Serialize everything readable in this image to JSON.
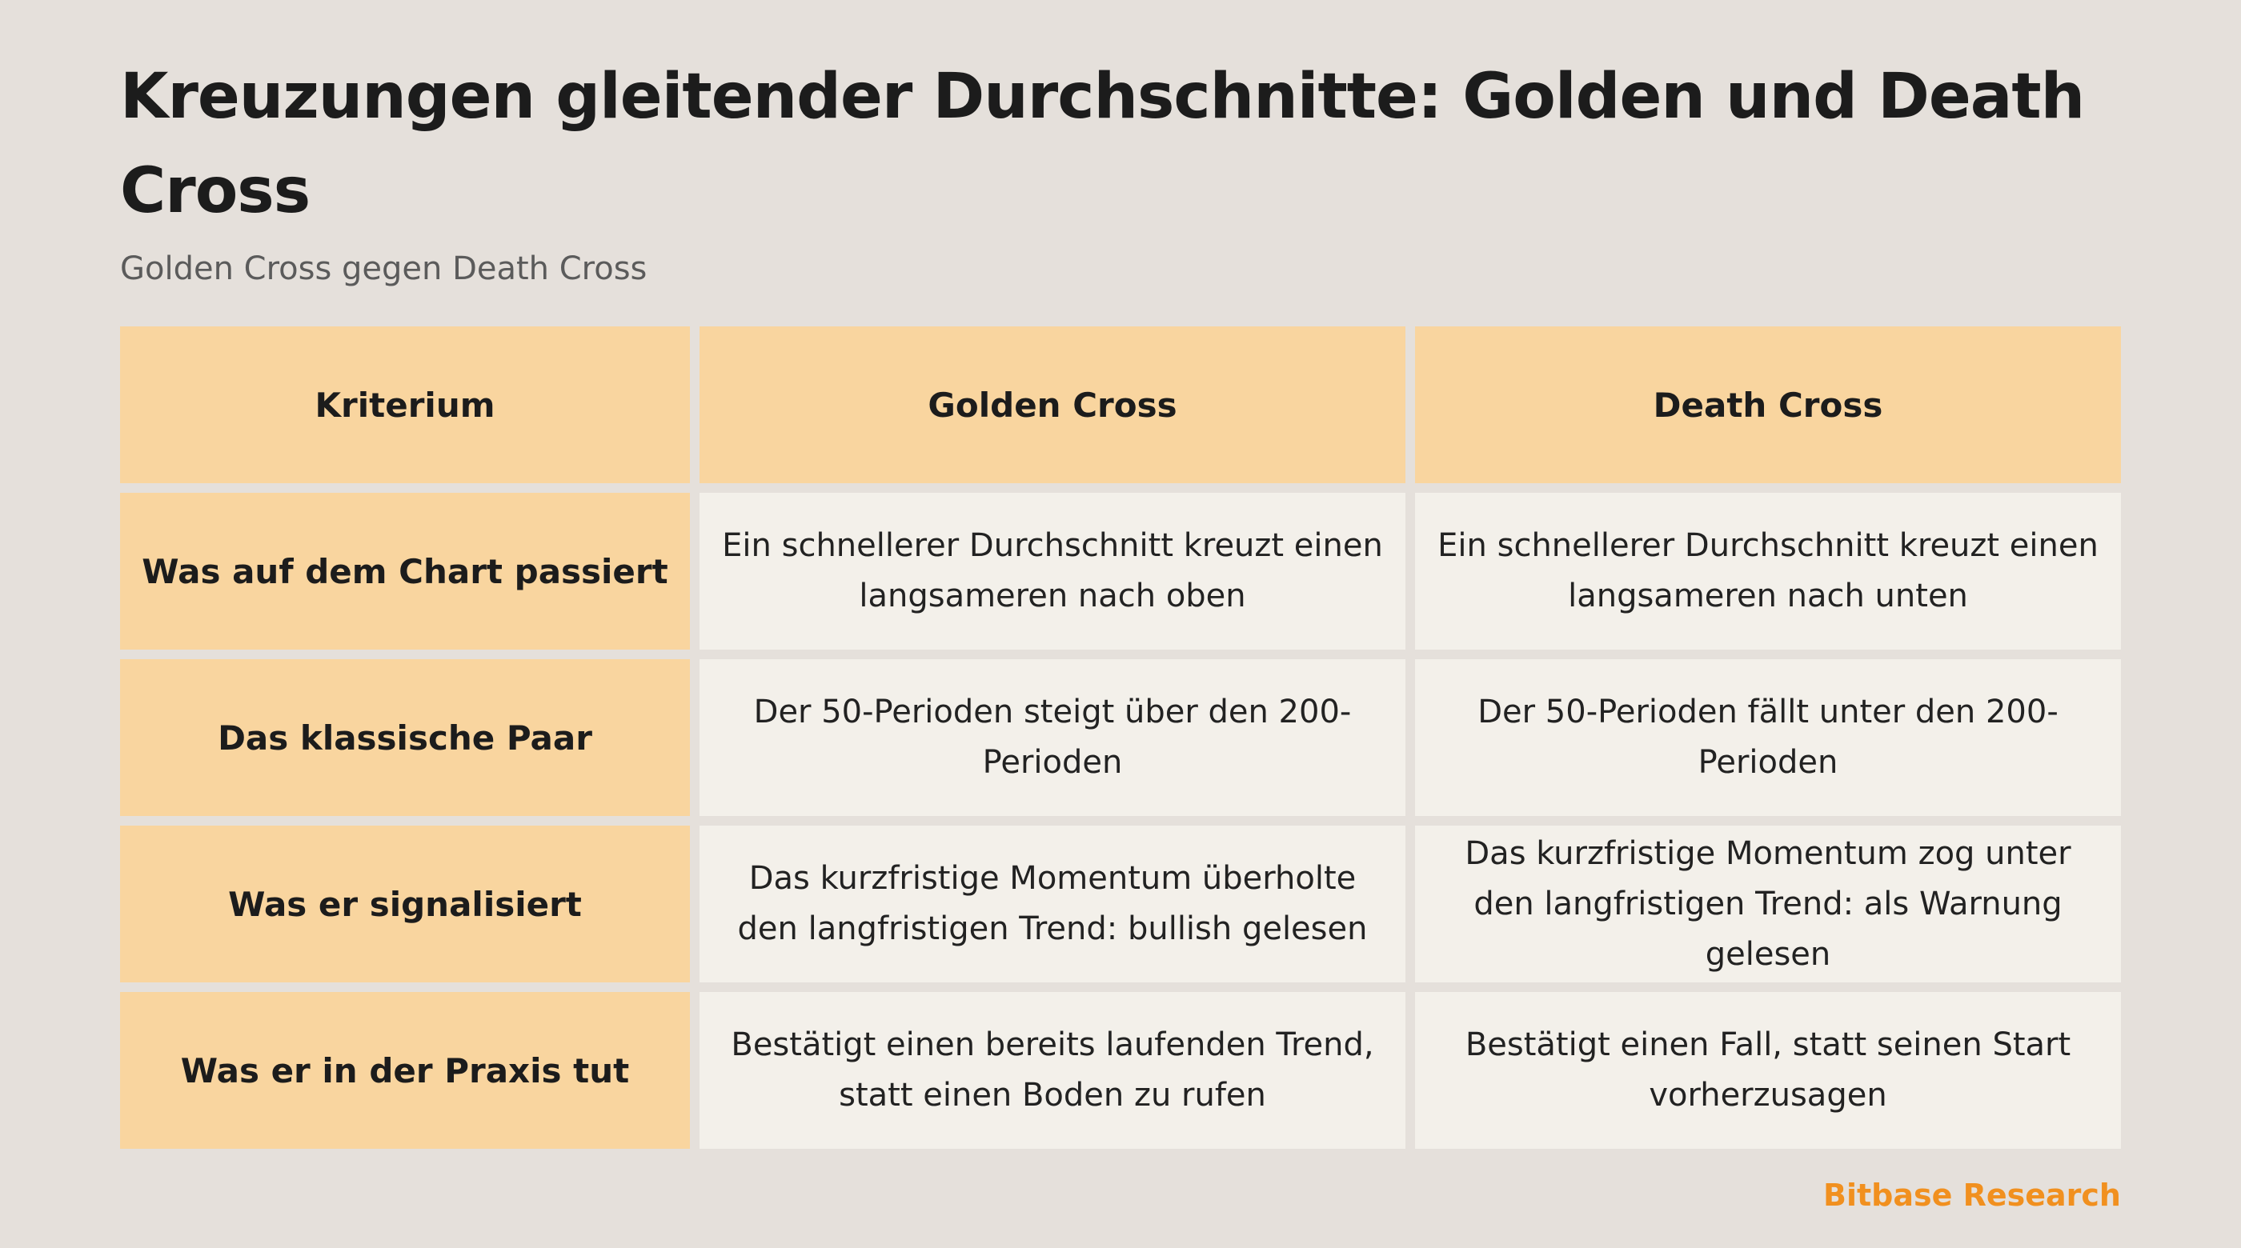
{
  "title": "Kreuzungen gleitender Durchschnitte: Golden und Death Cross",
  "subtitle": "Golden Cross gegen Death Cross",
  "table": {
    "headers": [
      "Kriterium",
      "Golden Cross",
      "Death Cross"
    ],
    "rows": [
      {
        "criterion": "Was auf dem Chart passiert",
        "golden": "Ein schnellerer Durchschnitt kreuzt einen langsameren nach oben",
        "death": "Ein schnellerer Durchschnitt kreuzt einen langsameren nach unten"
      },
      {
        "criterion": "Das klassische Paar",
        "golden": "Der 50-Perioden steigt über den 200-Perioden",
        "death": "Der 50-Perioden fällt unter den 200-Perioden"
      },
      {
        "criterion": "Was er signalisiert",
        "golden": "Das kurzfristige Momentum überholte den langfristigen Trend: bullish gelesen",
        "death": "Das kurzfristige Momentum zog unter den langfristigen Trend: als Warnung gelesen"
      },
      {
        "criterion": "Was er in der Praxis tut",
        "golden": "Bestätigt einen bereits laufenden Trend, statt einen Boden zu rufen",
        "death": "Bestätigt einen Fall, statt seinen Start vorherzusagen"
      }
    ]
  },
  "brand": "Bitbase Research",
  "colors": {
    "background": "#e5e0db",
    "header_fill": "#f9d59f",
    "cell_fill": "#f3f0ea",
    "brand": "#f1901f"
  }
}
